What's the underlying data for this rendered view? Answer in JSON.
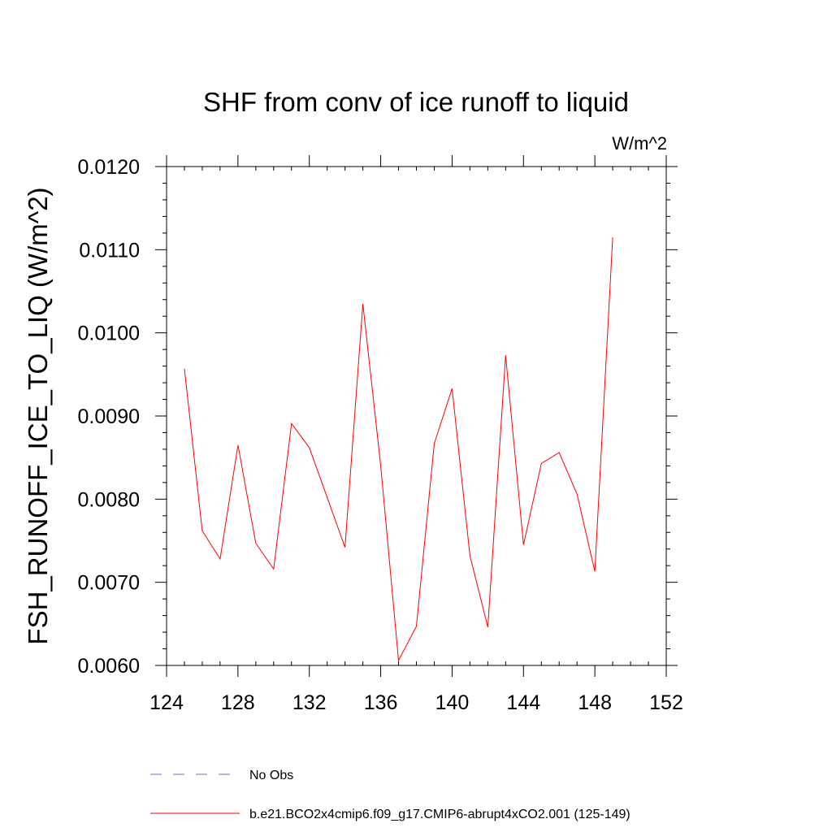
{
  "chart_data": {
    "type": "line",
    "title": "SHF from conv of ice runoff to liquid",
    "units_label": "W/m^2",
    "xlabel": "",
    "ylabel": "FSH_RUNOFF_ICE_TO_LIQ  (W/m^2)",
    "xlim": [
      124,
      152
    ],
    "ylim": [
      0.006,
      0.012
    ],
    "x_ticks": [
      124,
      128,
      132,
      136,
      140,
      144,
      148,
      152
    ],
    "y_ticks": [
      "0.0060",
      "0.0070",
      "0.0080",
      "0.0090",
      "0.0100",
      "0.0110",
      "0.0120"
    ],
    "grid": false,
    "series": [
      {
        "name": "b.e21.BCO2x4cmip6.f09_g17.CMIP6-abrupt4xCO2.001 (125-149)",
        "color": "#ff0000",
        "x": [
          125,
          126,
          127,
          128,
          129,
          130,
          131,
          132,
          133,
          134,
          135,
          136,
          137,
          138,
          139,
          140,
          141,
          142,
          143,
          144,
          145,
          146,
          147,
          148,
          149
        ],
        "y": [
          0.00957,
          0.00762,
          0.00728,
          0.00865,
          0.00747,
          0.00716,
          0.00891,
          0.00862,
          0.00802,
          0.00742,
          0.01035,
          0.0084,
          0.00606,
          0.00647,
          0.00867,
          0.00933,
          0.00732,
          0.00646,
          0.00973,
          0.00745,
          0.00843,
          0.00856,
          0.00806,
          0.00713,
          0.01115
        ]
      }
    ],
    "legend": {
      "position": "bottom",
      "entries": [
        {
          "label": "No Obs",
          "color": "#6a6acd",
          "style": "dashed"
        },
        {
          "label": "b.e21.BCO2x4cmip6.f09_g17.CMIP6-abrupt4xCO2.001 (125-149)",
          "color": "#ff0000",
          "style": "solid"
        }
      ]
    }
  }
}
